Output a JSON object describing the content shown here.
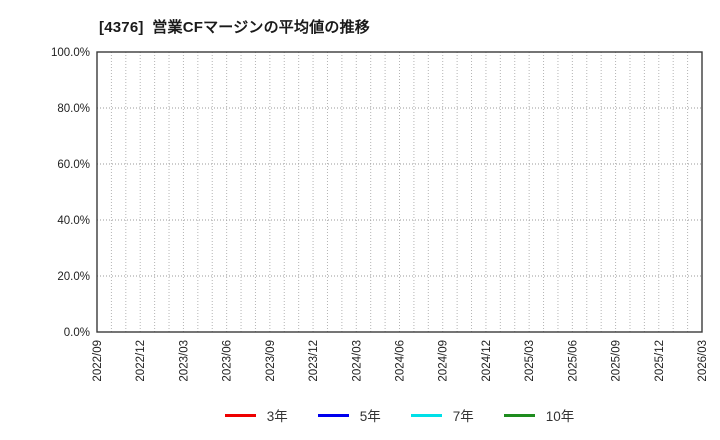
{
  "chart_data": {
    "type": "line",
    "title": "[4376]  営業CFマージンの平均値の推移",
    "x_labels": [
      "2022/09",
      "2022/12",
      "2023/03",
      "2023/06",
      "2023/09",
      "2023/12",
      "2024/03",
      "2024/06",
      "2024/09",
      "2024/12",
      "2025/03",
      "2025/06",
      "2025/09",
      "2025/12",
      "2026/03"
    ],
    "y_tick_labels": [
      "0.0%",
      "20.0%",
      "40.0%",
      "60.0%",
      "80.0%",
      "100.0%"
    ],
    "y_tick_values": [
      0,
      20,
      40,
      60,
      80,
      100
    ],
    "ylim": [
      0,
      100
    ],
    "grid": true,
    "minor_vgrid_per_quarter": 3,
    "legend_position": "bottom-center",
    "series": [
      {
        "name": "3年",
        "color": "#ee0000",
        "values": []
      },
      {
        "name": "5年",
        "color": "#0000ee",
        "values": []
      },
      {
        "name": "7年",
        "color": "#00e0e8",
        "values": []
      },
      {
        "name": "10年",
        "color": "#1e8c1e",
        "values": []
      }
    ],
    "plot_empty": true,
    "colors": {
      "border": "#3a3a3a",
      "vgrid": "#b4b4b4",
      "hgrid": "#9a9a9a",
      "background": "#ffffff"
    }
  }
}
